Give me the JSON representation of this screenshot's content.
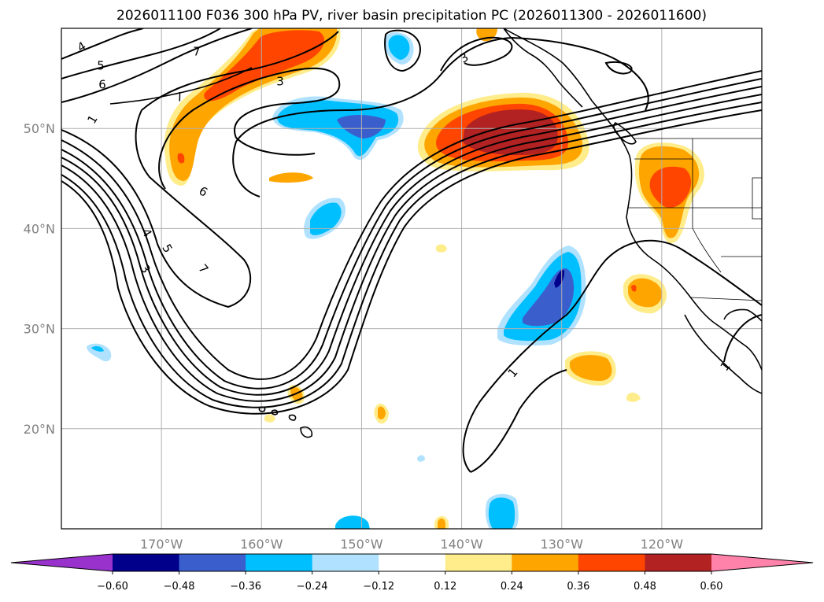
{
  "chart_data": {
    "type": "map",
    "title": "2026011100 F036 300 hPa PV, river basin precipitation PC (2026011300 - 2026011600)",
    "lon_range": [
      -180,
      -110
    ],
    "lat_range": [
      10,
      60
    ],
    "lon_ticks": [
      -170,
      -160,
      -150,
      -140,
      -130,
      -120
    ],
    "lon_tick_labels": [
      "170°W",
      "160°W",
      "150°W",
      "140°W",
      "130°W",
      "120°W"
    ],
    "lat_ticks": [
      20,
      30,
      40,
      50
    ],
    "lat_tick_labels": [
      "20°N",
      "30°N",
      "40°N",
      "50°N"
    ],
    "grid": true,
    "colorbar": {
      "orientation": "horizontal",
      "extend": "both",
      "levels": [
        -0.6,
        -0.48,
        -0.36,
        -0.24,
        -0.12,
        0.12,
        0.24,
        0.36,
        0.48,
        0.6
      ],
      "level_labels": [
        "−0.60",
        "−0.48",
        "−0.36",
        "−0.24",
        "−0.12",
        "0.12",
        "0.24",
        "0.36",
        "0.48",
        "0.60"
      ],
      "colors": [
        "#9932cc",
        "#00008b",
        "#3a5fcd",
        "#00bfff",
        "#b0e2ff",
        "#ffffff",
        "#ffec8b",
        "#ffa500",
        "#ff4500",
        "#b22222",
        "#ff82ab"
      ]
    },
    "pv_contour_labels": [
      "4",
      "5",
      "6",
      "7",
      "3",
      "6",
      "4",
      "5",
      "3",
      "7",
      "1",
      "1",
      "1",
      "3",
      "7"
    ],
    "precip_anomalies": [
      {
        "name": "gulf-of-alaska-max",
        "lon": -136,
        "lat": 49,
        "value": 0.52
      },
      {
        "name": "aleutian-max",
        "lon": -162,
        "lat": 55,
        "value": 0.4
      },
      {
        "name": "west-coast-max",
        "lon": -120,
        "lat": 44,
        "value": 0.42
      },
      {
        "name": "central-pacific-min",
        "lon": -153,
        "lat": 51,
        "value": -0.38
      },
      {
        "name": "subtropical-min",
        "lon": -131,
        "lat": 33,
        "value": -0.5
      },
      {
        "name": "hawaii-east-max",
        "lon": -128,
        "lat": 26,
        "value": 0.3
      },
      {
        "name": "baja-max",
        "lon": -121,
        "lat": 34,
        "value": 0.38
      }
    ]
  }
}
